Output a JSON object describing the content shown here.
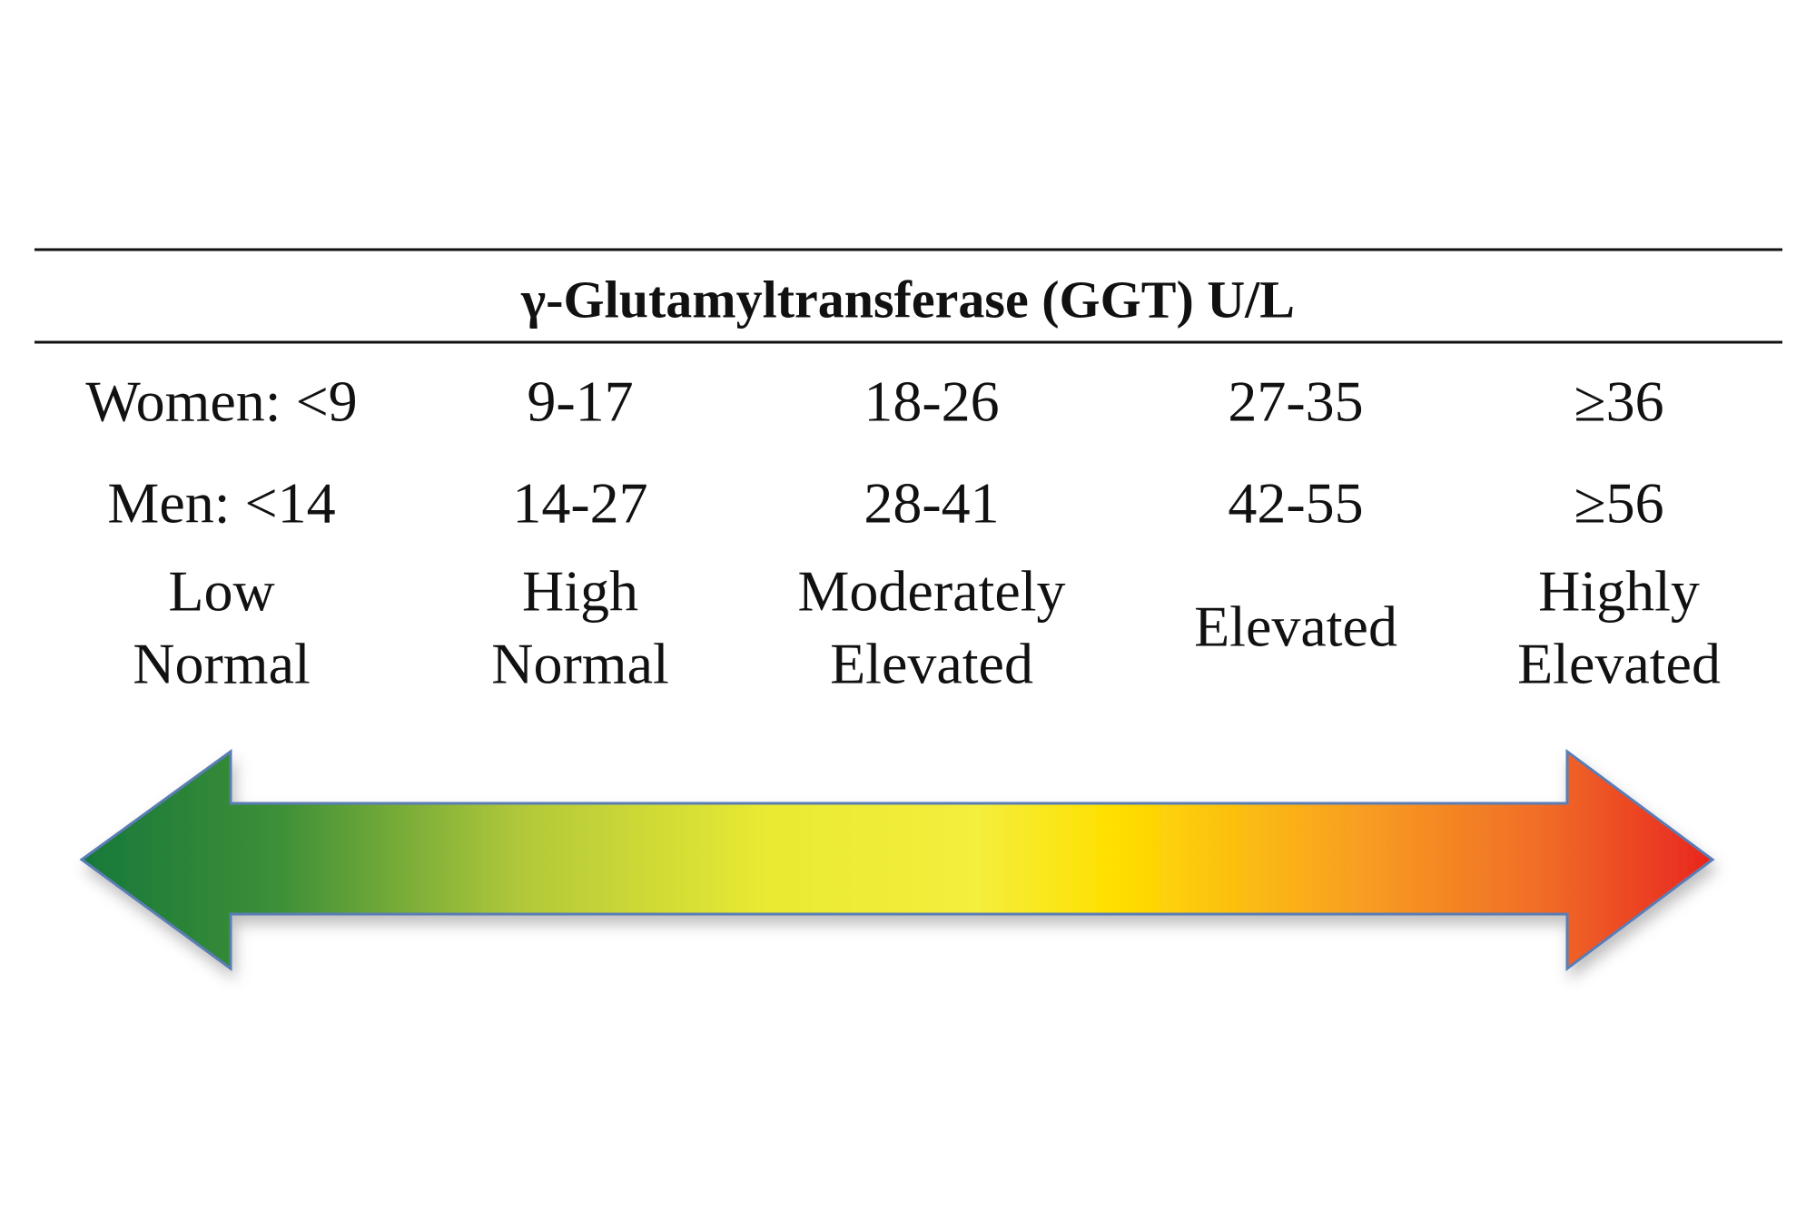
{
  "title": "γ-Glutamyltransferase (GGT) U/L",
  "columns": [
    {
      "women": "Women: <9",
      "men": "Men: <14",
      "label": [
        "Low",
        "Normal"
      ]
    },
    {
      "women": "9-17",
      "men": "14-27",
      "label": [
        "High",
        "Normal"
      ]
    },
    {
      "women": "18-26",
      "men": "28-41",
      "label": [
        "Moderately",
        "Elevated"
      ]
    },
    {
      "women": "27-35",
      "men": "42-55",
      "label": [
        "Elevated"
      ]
    },
    {
      "women": "≥36",
      "men": "≥56",
      "label": [
        "Highly",
        "Elevated"
      ]
    }
  ]
}
